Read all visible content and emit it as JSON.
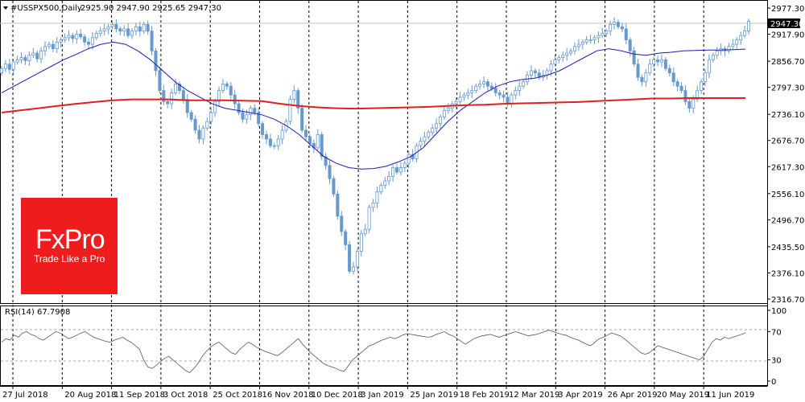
{
  "header": {
    "symbol": "#USSPX500,Daily",
    "ohlc": "2925.90 2947.90 2925.65 2947.30"
  },
  "rsi_header": "RSI(14) 67.7908",
  "last_price": "2947.30",
  "logo": {
    "name": "FxPro",
    "tagline": "Trade Like a Pro",
    "color": "#ee1c1c"
  },
  "colors": {
    "candle": "#6699cc",
    "ma_fast": "#1c1cb4",
    "ma_slow": "#e02020",
    "rsi": "#555555"
  },
  "chart_data": [
    {
      "type": "line",
      "role": "price",
      "yticks": [
        "2977.30",
        "2917.90",
        "2856.70",
        "2797.30",
        "2736.10",
        "2676.70",
        "2617.30",
        "2556.10",
        "2496.70",
        "2435.50",
        "2376.10",
        "2316.70"
      ],
      "ylim": [
        2316.7,
        2977.3
      ],
      "xticks": [
        "27 Jul 2018",
        "20 Aug 2018",
        "11 Sep 2018",
        "3 Oct 2018",
        "25 Oct 2018",
        "16 Nov 2018",
        "10 Dec 2018",
        "3 Jan 2019",
        "25 Jan 2019",
        "18 Feb 2019",
        "12 Mar 2019",
        "3 Apr 2019",
        "26 Apr 2019",
        "20 May 2019",
        "11 Jun 2019"
      ],
      "series": [
        {
          "values": [
            2840,
            2850,
            2838,
            2855,
            2860,
            2865,
            2858,
            2870,
            2875,
            2862,
            2880,
            2890,
            2895,
            2885,
            2900,
            2905,
            2910,
            2915,
            2908,
            2918,
            2912,
            2900,
            2895,
            2910,
            2920,
            2925,
            2930,
            2935,
            2940,
            2930,
            2925,
            2930,
            2915,
            2925,
            2935,
            2925,
            2940,
            2925,
            2880,
            2835,
            2790,
            2765,
            2760,
            2785,
            2805,
            2790,
            2770,
            2740,
            2725,
            2700,
            2680,
            2705,
            2720,
            2740,
            2765,
            2790,
            2805,
            2800,
            2780,
            2760,
            2740,
            2725,
            2735,
            2750,
            2740,
            2715,
            2690,
            2680,
            2665,
            2665,
            2680,
            2700,
            2720,
            2770,
            2790,
            2750,
            2700,
            2685,
            2670,
            2660,
            2690,
            2640,
            2620,
            2590,
            2555,
            2505,
            2470,
            2440,
            2380,
            2390,
            2425,
            2465,
            2475,
            2525,
            2535,
            2560,
            2575,
            2585,
            2595,
            2615,
            2605,
            2615,
            2625,
            2645,
            2635,
            2665,
            2675,
            2685,
            2695,
            2705,
            2715,
            2730,
            2745,
            2750,
            2760,
            2765,
            2775,
            2780,
            2785,
            2790,
            2800,
            2805,
            2810,
            2800,
            2795,
            2785,
            2780,
            2775,
            2760,
            2780,
            2790,
            2800,
            2810,
            2825,
            2835,
            2830,
            2820,
            2825,
            2835,
            2850,
            2860,
            2865,
            2870,
            2875,
            2880,
            2890,
            2895,
            2900,
            2905,
            2905,
            2910,
            2915,
            2920,
            2925,
            2940,
            2945,
            2935,
            2930,
            2905,
            2880,
            2850,
            2820,
            2810,
            2830,
            2850,
            2860,
            2855,
            2860,
            2840,
            2830,
            2810,
            2800,
            2790,
            2765,
            2750,
            2770,
            2790,
            2810,
            2830,
            2860,
            2870,
            2880,
            2885,
            2880,
            2890,
            2895,
            2905,
            2915,
            2925,
            2947.3
          ]
        },
        {
          "values": [
            2785,
            2800,
            2815,
            2830,
            2845,
            2860,
            2872,
            2885,
            2895,
            2900,
            2895,
            2880,
            2860,
            2835,
            2810,
            2790,
            2775,
            2760,
            2750,
            2745,
            2740,
            2735,
            2725,
            2710,
            2690,
            2665,
            2640,
            2625,
            2615,
            2612,
            2613,
            2618,
            2628,
            2640,
            2660,
            2690,
            2720,
            2745,
            2765,
            2785,
            2800,
            2810,
            2815,
            2818,
            2825,
            2835,
            2850,
            2865,
            2880,
            2885,
            2880,
            2873,
            2870,
            2875,
            2877,
            2880,
            2881,
            2882,
            2882,
            2883,
            2884
          ]
        },
        {
          "values": [
            2740,
            2745,
            2750,
            2755,
            2760,
            2764,
            2768,
            2770,
            2770,
            2770,
            2768,
            2768,
            2768,
            2767,
            2766,
            2760,
            2755,
            2752,
            2750,
            2749,
            2750,
            2751,
            2752,
            2753,
            2755,
            2757,
            2758,
            2760,
            2761,
            2762,
            2763,
            2764,
            2766,
            2768,
            2770,
            2772,
            2772,
            2773,
            2773,
            2773,
            2773
          ]
        }
      ]
    },
    {
      "type": "line",
      "role": "oscillator",
      "yticks": [
        "100",
        "70",
        "30",
        "0"
      ],
      "ylim": [
        0,
        100
      ],
      "series": [
        {
          "values": [
            55,
            60,
            58,
            65,
            62,
            68,
            70,
            66,
            64,
            60,
            58,
            62,
            66,
            70,
            68,
            64,
            60,
            62,
            65,
            68,
            70,
            66,
            62,
            60,
            58,
            56,
            55,
            58,
            60,
            62,
            58,
            55,
            50,
            45,
            30,
            20,
            18,
            22,
            28,
            32,
            35,
            30,
            25,
            20,
            15,
            12,
            18,
            25,
            35,
            42,
            48,
            52,
            55,
            50,
            45,
            40,
            38,
            45,
            50,
            55,
            52,
            48,
            45,
            42,
            40,
            38,
            36,
            40,
            45,
            50,
            55,
            60,
            52,
            46,
            40,
            35,
            30,
            25,
            22,
            20,
            18,
            15,
            14,
            22,
            30,
            35,
            40,
            45,
            50,
            52,
            55,
            58,
            60,
            62,
            60,
            62,
            65,
            67,
            66,
            65,
            64,
            63,
            62,
            63,
            66,
            68,
            70,
            66,
            64,
            60,
            56,
            52,
            56,
            60,
            62,
            64,
            65,
            66,
            64,
            62,
            64,
            66,
            68,
            70,
            68,
            66,
            64,
            65,
            66,
            68,
            70,
            72,
            70,
            68,
            66,
            65,
            62,
            60,
            58,
            55,
            52,
            50,
            55,
            60,
            62,
            65,
            68,
            66,
            64,
            60,
            55,
            50,
            45,
            40,
            38,
            40,
            45,
            50,
            48,
            46,
            44,
            42,
            40,
            38,
            36,
            34,
            32,
            30,
            35,
            45,
            55,
            60,
            58,
            62,
            60,
            62,
            64,
            66,
            67.79
          ]
        }
      ]
    }
  ]
}
